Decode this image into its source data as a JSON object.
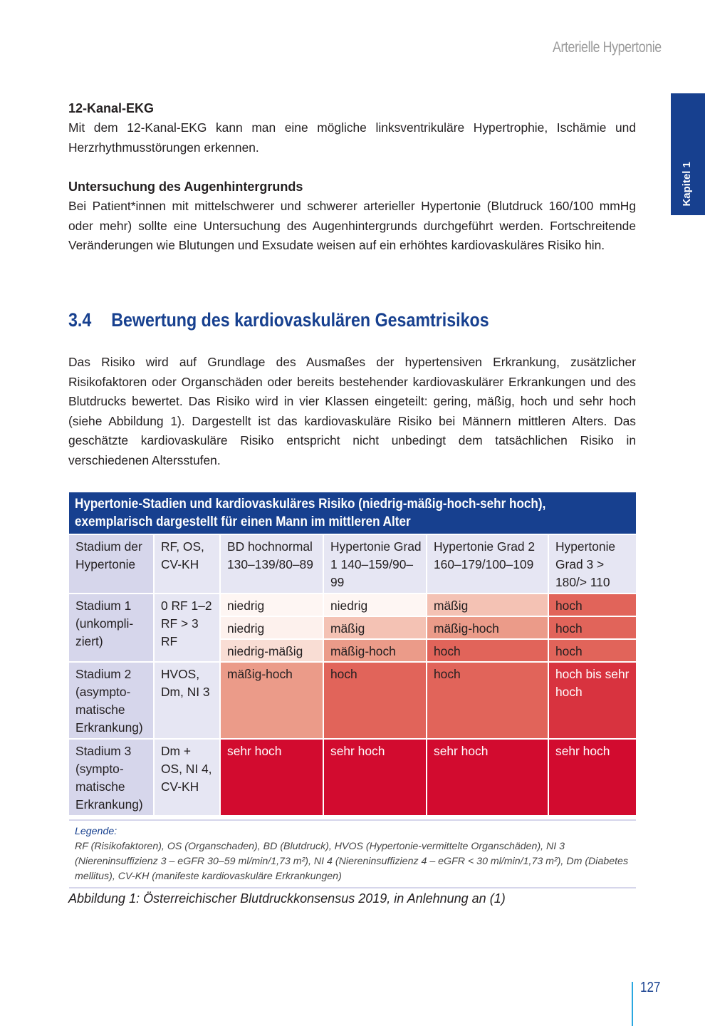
{
  "running_head": "Arterielle Hypertonie",
  "chapter_tab": "Kapitel 1",
  "sections": [
    {
      "heading": "12-Kanal-EKG",
      "text": "Mit dem 12-Kanal-EKG kann man eine mögliche linksventrikuläre Hypertrophie, Ischämie und Herzrhythmusstörungen erkennen."
    },
    {
      "heading": "Untersuchung des Augenhintergrunds",
      "text": "Bei Patient*innen mit mittelschwerer und schwerer arterieller Hypertonie (Blutdruck 160/100 mmHg oder mehr) sollte eine Untersuchung des Augenhintergrunds durchgeführt werden. Fortschreitende Veränderungen wie Blutungen und Exsudate weisen auf ein erhöhtes kardiovaskuläres Risiko hin."
    }
  ],
  "section_number": "3.4",
  "section_title": "Bewertung des kardiovaskulären Gesamtrisikos",
  "intro": "Das Risiko wird auf Grundlage des Ausmaßes der hypertensiven Erkrankung, zusätzlicher Risikofaktoren oder Organschäden oder bereits bestehender kardiovaskulärer Erkrankungen und des Blutdrucks bewertet. Das Risiko wird in vier Klassen eingeteilt: gering, mäßig, hoch und sehr hoch (siehe Abbildung 1). Dargestellt ist das kardiovaskuläre Risiko bei Männern mittleren Alters. Das geschätzte kardiovaskuläre Risiko entspricht nicht unbedingt dem tatsächlichen Risiko in verschiedenen Altersstufen.",
  "table": {
    "title_line1": "Hypertonie-Stadien und kardiovaskuläres Risiko (niedrig-mäßig-hoch-sehr hoch),",
    "title_line2": "exemplarisch dargestellt für einen Mann im mittleren Alter",
    "headers": [
      "Stadium der Hypertonie",
      "RF, OS, CV-KH",
      "BD hochnormal 130–139/80–89",
      "Hypertonie Grad 1 140–159/90–99",
      "Hypertonie Grad 2 160–179/100–109",
      "Hypertonie Grad 3 > 180/> 110"
    ],
    "stage1": {
      "label": "Stadium 1 (unkompli-ziert)",
      "factors": "0 RF 1–2 RF > 3 RF",
      "rows": [
        [
          "niedrig",
          "niedrig",
          "mäßig",
          "hoch"
        ],
        [
          "niedrig",
          "mäßig",
          "mäßig-hoch",
          "hoch"
        ],
        [
          "niedrig-mäßig",
          "mäßig-hoch",
          "hoch",
          "hoch"
        ]
      ]
    },
    "stage2": {
      "label": "Stadium 2 (asympto-matische Erkrankung)",
      "factors": "HVOS, Dm, NI 3",
      "cells": [
        "mäßig-hoch",
        "hoch",
        "hoch",
        "hoch bis sehr hoch"
      ]
    },
    "stage3": {
      "label": "Stadium 3 (sympto-matische Erkrankung)",
      "factors": "Dm + OS, NI 4, CV-KH",
      "cells": [
        "sehr hoch",
        "sehr hoch",
        "sehr hoch",
        "sehr hoch"
      ]
    },
    "colors": {
      "niedrig": "#fdf1ed",
      "niedrig-mäßig": "#f9ddd4",
      "mäßig": "#f4c2b4",
      "mäßig-hoch": "#eb9b89",
      "hoch": "#e1645a",
      "hoch bis sehr hoch": "#d8333f",
      "sehr hoch": "#d20b2f",
      "header": "#17408f"
    }
  },
  "legend_title": "Legende:",
  "legend_text": "RF (Risikofaktoren), OS (Organschaden), BD (Blutdruck), HVOS (Hypertonie-vermittelte Organschäden), NI 3 (Niereninsuffizienz 3 – eGFR 30–59 ml/min/1,73 m²), NI 4 (Niereninsuffizienz 4 – eGFR < 30 ml/min/1,73 m²), Dm (Diabetes mellitus), CV-KH (manifeste kardiovaskuläre Erkrankungen)",
  "caption": "Abbildung 1: Österreichischer Blutdruckkonsensus 2019, in Anlehnung an (1)",
  "page_number": "127"
}
